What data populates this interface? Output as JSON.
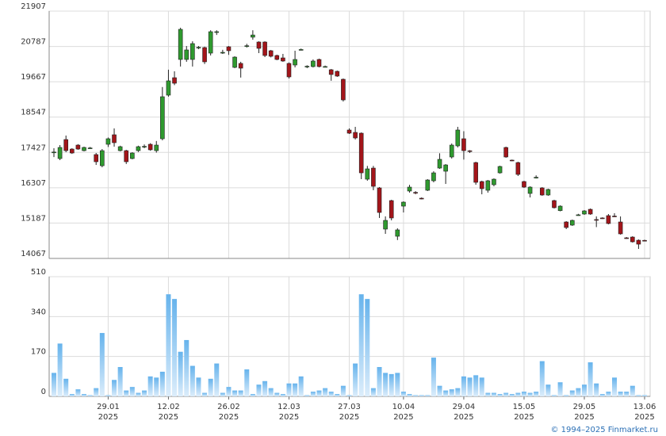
{
  "chart_data": [
    {
      "type": "candlestick",
      "xlim": [
        -0.79,
        98.92
      ],
      "ylim": [
        14067,
        21907
      ],
      "yticks": [
        14067,
        15187,
        16307,
        17427,
        18547,
        19667,
        20787,
        21907
      ],
      "grid": true,
      "up_color": "#2f9a2f",
      "down_color": "#a3151a",
      "open": [
        17430,
        17233,
        17836,
        17534,
        17660,
        17484,
        17560,
        17359,
        17006,
        17685,
        17987,
        17484,
        17484,
        17233,
        17484,
        17610,
        17685,
        17484,
        17861,
        19243,
        19796,
        20374,
        20374,
        20374,
        20751,
        20751,
        20575,
        21240,
        20590,
        20776,
        20123,
        20249,
        20800,
        21080,
        20927,
        20927,
        20651,
        20500,
        20424,
        20249,
        20198,
        20680,
        20150,
        20148,
        20374,
        20140,
        20048,
        19998,
        19746,
        18138,
        18062,
        18037,
        16579,
        16931,
        16303,
        14997,
        15901,
        14770,
        15725,
        16203,
        16160,
        15976,
        16228,
        16529,
        16931,
        16831,
        17283,
        17635,
        17861,
        17480,
        17106,
        16504,
        16228,
        16404,
        16780,
        17584,
        17183,
        17106,
        16504,
        16127,
        16633,
        16303,
        16077,
        15901,
        15583,
        15223,
        15123,
        15440,
        15474,
        15624,
        15300,
        15350,
        15424,
        15410,
        15223,
        14720,
        14745,
        14644,
        14640
      ],
      "high": [
        17560,
        17660,
        17962,
        17560,
        17690,
        17610,
        17600,
        17409,
        17534,
        17900,
        18188,
        17640,
        17510,
        17434,
        17640,
        17680,
        17720,
        17790,
        19500,
        20050,
        20000,
        21380,
        20800,
        20950,
        20800,
        20780,
        21300,
        21300,
        20680,
        20800,
        20475,
        20300,
        20870,
        21300,
        20950,
        20950,
        20676,
        20525,
        20550,
        20280,
        20651,
        20720,
        20190,
        20374,
        20400,
        20180,
        20073,
        20023,
        19771,
        18188,
        18238,
        18062,
        17000,
        17000,
        16330,
        15400,
        15926,
        15022,
        15876,
        16400,
        16200,
        16000,
        16579,
        16830,
        17400,
        17057,
        17710,
        18238,
        18100,
        17500,
        17132,
        16530,
        16554,
        16604,
        17006,
        17610,
        17200,
        17132,
        16530,
        16353,
        16700,
        16328,
        16278,
        15926,
        15750,
        15248,
        15298,
        15480,
        15600,
        15650,
        15400,
        15370,
        15474,
        15500,
        15398,
        14745,
        14770,
        14669,
        14660
      ],
      "low": [
        17280,
        17183,
        17434,
        17380,
        17510,
        17460,
        17540,
        17031,
        16956,
        17600,
        17610,
        17460,
        17060,
        17210,
        17440,
        17560,
        17480,
        17420,
        17810,
        19193,
        19560,
        20150,
        20300,
        20150,
        20700,
        20230,
        20500,
        21150,
        20550,
        20520,
        20098,
        19800,
        20750,
        21000,
        20575,
        20450,
        20440,
        20350,
        20300,
        19770,
        20123,
        20660,
        20098,
        20120,
        20123,
        20120,
        19700,
        19821,
        19041,
        18012,
        17836,
        16580,
        16530,
        16228,
        15350,
        14846,
        15273,
        14650,
        15524,
        16152,
        16100,
        15940,
        16203,
        16479,
        16906,
        16428,
        17233,
        17585,
        17200,
        17410,
        16404,
        16100,
        16152,
        16353,
        16755,
        17258,
        17150,
        16680,
        16303,
        16000,
        16600,
        16052,
        16052,
        15650,
        15560,
        14997,
        15098,
        15420,
        15449,
        15449,
        15060,
        15320,
        15148,
        15380,
        14821,
        14690,
        14570,
        14369,
        14620
      ],
      "close": [
        17440,
        17585,
        17484,
        17409,
        17534,
        17585,
        17570,
        17132,
        17484,
        17861,
        17736,
        17610,
        17132,
        17409,
        17610,
        17620,
        17510,
        17660,
        19193,
        19696,
        19620,
        21329,
        20676,
        20877,
        20760,
        20299,
        21254,
        21254,
        20600,
        20651,
        20449,
        20098,
        20810,
        21150,
        20726,
        20500,
        20475,
        20374,
        20324,
        19821,
        20374,
        20690,
        20160,
        20324,
        20148,
        20150,
        19897,
        19847,
        19092,
        18037,
        17886,
        16780,
        16906,
        16353,
        15524,
        15273,
        15349,
        14972,
        15851,
        16328,
        16152,
        15960,
        16554,
        16780,
        17208,
        17031,
        17660,
        18138,
        17484,
        17470,
        16479,
        16278,
        16529,
        16579,
        16982,
        17283,
        17170,
        16730,
        16328,
        16328,
        16640,
        16077,
        16253,
        15675,
        15725,
        15047,
        15273,
        15450,
        15574,
        15474,
        15290,
        15340,
        15173,
        15400,
        14846,
        14710,
        14594,
        14519,
        14635
      ]
    },
    {
      "type": "bar",
      "xlim": [
        -0.79,
        98.92
      ],
      "ylim": [
        0,
        510
      ],
      "yticks": [
        0,
        170,
        340,
        510
      ],
      "grid": true,
      "color_top": "#66b3ec",
      "color_bottom": "#dcedfb",
      "values": [
        100,
        225,
        75,
        10,
        30,
        10,
        5,
        35,
        270,
        5,
        70,
        125,
        25,
        40,
        15,
        25,
        85,
        80,
        105,
        435,
        415,
        190,
        240,
        130,
        80,
        15,
        75,
        140,
        15,
        40,
        25,
        25,
        115,
        10,
        50,
        65,
        35,
        15,
        10,
        55,
        55,
        85,
        5,
        20,
        25,
        35,
        20,
        10,
        45,
        5,
        140,
        435,
        415,
        35,
        125,
        100,
        95,
        100,
        20,
        10,
        5,
        5,
        5,
        165,
        45,
        25,
        30,
        35,
        85,
        80,
        90,
        80,
        15,
        15,
        10,
        15,
        10,
        15,
        20,
        15,
        20,
        150,
        50,
        5,
        60,
        5,
        25,
        35,
        50,
        145,
        55,
        10,
        20,
        80,
        20,
        20,
        45,
        5,
        5
      ],
      "xticks": [
        {
          "value": 9,
          "label": "29.01",
          "sublabel": "2025"
        },
        {
          "value": 19,
          "label": "12.02",
          "sublabel": "2025"
        },
        {
          "value": 29,
          "label": "26.02",
          "sublabel": "2025"
        },
        {
          "value": 39,
          "label": "12.03",
          "sublabel": "2025"
        },
        {
          "value": 49,
          "label": "27.03",
          "sublabel": "2025"
        },
        {
          "value": 58,
          "label": "10.04",
          "sublabel": "2025"
        },
        {
          "value": 68,
          "label": "29.04",
          "sublabel": "2025"
        },
        {
          "value": 78,
          "label": "15.05",
          "sublabel": "2025"
        },
        {
          "value": 88,
          "label": "29.05",
          "sublabel": "2025"
        },
        {
          "value": 98,
          "label": "13.06",
          "sublabel": "2025"
        }
      ]
    }
  ],
  "footer": "© 1994–2025 Finmarket.ru"
}
